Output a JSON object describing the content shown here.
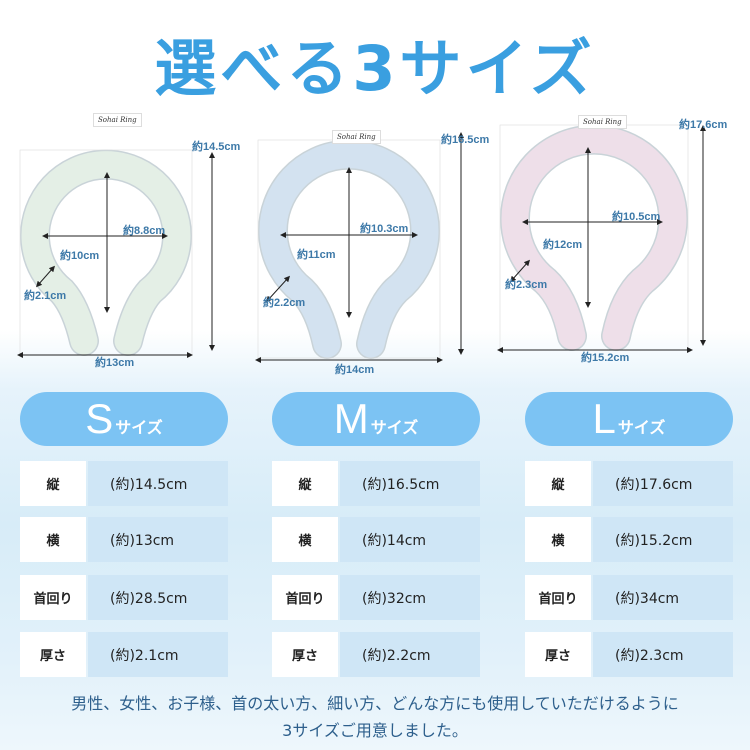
{
  "title": "選べる3サイズ",
  "tag_text": "Sohai Ring",
  "accent": "#3a9fe0",
  "pill_color": "#7cc3f3",
  "sizes": [
    {
      "letter": "S",
      "suffix": "サイズ",
      "ring_color": "#e4efe6",
      "dims": {
        "height": "約14.5cm",
        "width": "約13cm",
        "inner_w": "約8.8cm",
        "inner_h": "約10cm",
        "thick": "約2.1cm"
      },
      "rows": [
        {
          "k": "縦",
          "v": "(約)14.5cm"
        },
        {
          "k": "横",
          "v": "(約)13cm"
        },
        {
          "k": "首回り",
          "v": "(約)28.5cm"
        },
        {
          "k": "厚さ",
          "v": "(約)2.1cm"
        }
      ]
    },
    {
      "letter": "M",
      "suffix": "サイズ",
      "ring_color": "#d3e2f0",
      "dims": {
        "height": "約16.5cm",
        "width": "約14cm",
        "inner_w": "約10.3cm",
        "inner_h": "約11cm",
        "thick": "約2.2cm"
      },
      "rows": [
        {
          "k": "縦",
          "v": "(約)16.5cm"
        },
        {
          "k": "横",
          "v": "(約)14cm"
        },
        {
          "k": "首回り",
          "v": "(約)32cm"
        },
        {
          "k": "厚さ",
          "v": "(約)2.2cm"
        }
      ]
    },
    {
      "letter": "L",
      "suffix": "サイズ",
      "ring_color": "#eedfe9",
      "dims": {
        "height": "約17.6cm",
        "width": "約15.2cm",
        "inner_w": "約10.5cm",
        "inner_h": "約12cm",
        "thick": "約2.3cm"
      },
      "rows": [
        {
          "k": "縦",
          "v": "(約)17.6cm"
        },
        {
          "k": "横",
          "v": "(約)15.2cm"
        },
        {
          "k": "首回り",
          "v": "(約)34cm"
        },
        {
          "k": "厚さ",
          "v": "(約)2.3cm"
        }
      ]
    }
  ],
  "footer": [
    "男性、女性、お子様、首の太い方、細い方、どんな方にも使用していただけるように",
    "3サイズご用意しました。"
  ]
}
